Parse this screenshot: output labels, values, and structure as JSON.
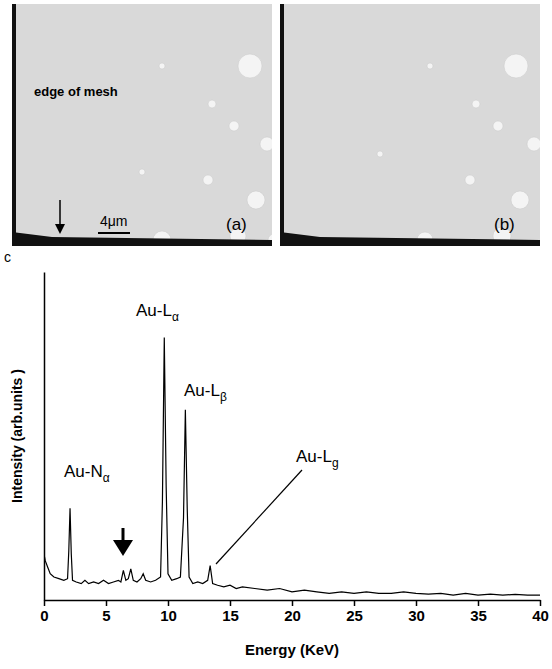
{
  "images": [
    {
      "label": "(a)",
      "texts": [
        "edge of mesh",
        "4μm"
      ]
    },
    {
      "label": "(b)",
      "texts": []
    }
  ],
  "chart_data": {
    "type": "line",
    "title": "c",
    "x_label": "Energy (KeV)",
    "y_label": "Intensity (arb.units )",
    "annotations": [
      "Au-Nα",
      "Au-Lα",
      "Au-Lβ",
      "Au-Lg"
    ],
    "color": "#000000",
    "x": [
      0,
      0.1,
      0.3,
      0.5,
      0.8,
      1.2,
      1.6,
      1.9,
      2.0,
      2.1,
      2.2,
      2.3,
      2.6,
      3.0,
      3.3,
      3.6,
      4.0,
      4.4,
      4.8,
      5.2,
      5.6,
      6.0,
      6.2,
      6.4,
      6.6,
      6.8,
      7.0,
      7.2,
      7.5,
      7.8,
      8.0,
      8.2,
      8.6,
      9.0,
      9.4,
      9.55,
      9.7,
      9.85,
      10.0,
      10.3,
      10.7,
      11.0,
      11.25,
      11.4,
      11.55,
      11.7,
      12.0,
      12.4,
      12.8,
      13.2,
      13.4,
      13.6,
      14.0,
      14.5,
      15,
      15.5,
      16,
      17,
      18,
      19,
      20,
      21,
      22,
      23,
      24,
      25,
      26,
      27,
      28,
      29,
      30,
      31,
      32,
      33,
      34,
      35,
      36,
      37,
      38,
      39,
      40
    ],
    "values": [
      14,
      12,
      10,
      8,
      7,
      6.5,
      6,
      6.5,
      15,
      28,
      14,
      6,
      5.5,
      5,
      6,
      5,
      5.5,
      5,
      6,
      5,
      5.5,
      6,
      5.5,
      9,
      6,
      6.5,
      9.5,
      6,
      5.5,
      6.5,
      8,
      6,
      5.5,
      6,
      7,
      30,
      80,
      35,
      8,
      6,
      6.5,
      7,
      25,
      58,
      28,
      7,
      5,
      5.5,
      5,
      6,
      10.5,
      5,
      4.5,
      4,
      4.5,
      3.5,
      4,
      3.5,
      3,
      3.5,
      2.5,
      3,
      2.5,
      2,
      2.5,
      2,
      2.5,
      2,
      2,
      2.5,
      2,
      1.8,
      2,
      1.5,
      2,
      1.5,
      1.8,
      1.5,
      1.7,
      1.5,
      1.5
    ],
    "xlim": [
      0,
      40
    ],
    "xticks": [
      0,
      5,
      10,
      15,
      20,
      25,
      30,
      35,
      40
    ],
    "ylim": [
      0,
      100
    ],
    "tick_labels": "x"
  }
}
